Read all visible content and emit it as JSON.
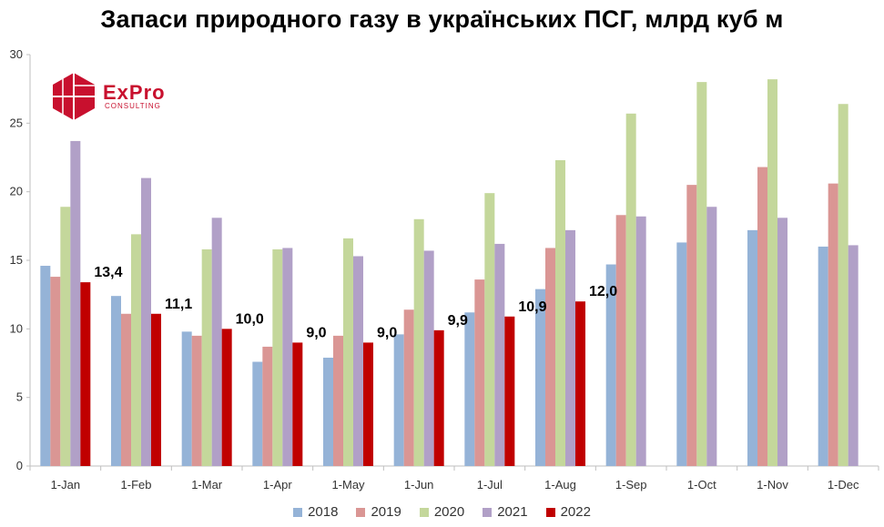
{
  "chart_data": {
    "type": "bar",
    "title": "Запаси природного газу в українських ПСГ, млрд куб м",
    "xlabel": "",
    "ylabel": "",
    "ylim": [
      0,
      30
    ],
    "yticks": [
      0,
      5,
      10,
      15,
      20,
      25,
      30
    ],
    "grid": false,
    "legend_position": "bottom",
    "categories": [
      "1-Jan",
      "1-Feb",
      "1-Mar",
      "1-Apr",
      "1-May",
      "1-Jun",
      "1-Jul",
      "1-Aug",
      "1-Sep",
      "1-Oct",
      "1-Nov",
      "1-Dec"
    ],
    "series": [
      {
        "name": "2018",
        "color": "#95B3D7",
        "values": [
          14.6,
          12.4,
          9.8,
          7.6,
          7.9,
          9.6,
          11.2,
          12.9,
          14.7,
          16.3,
          17.2,
          16.0
        ]
      },
      {
        "name": "2019",
        "color": "#DA9694",
        "values": [
          13.8,
          11.1,
          9.5,
          8.7,
          9.5,
          11.4,
          13.6,
          15.9,
          18.3,
          20.5,
          21.8,
          20.6
        ]
      },
      {
        "name": "2020",
        "color": "#C4D79B",
        "values": [
          18.9,
          16.9,
          15.8,
          15.8,
          16.6,
          18.0,
          19.9,
          22.3,
          25.7,
          28.0,
          28.2,
          26.4
        ]
      },
      {
        "name": "2021",
        "color": "#B1A0C7",
        "values": [
          23.7,
          21.0,
          18.1,
          15.9,
          15.3,
          15.7,
          16.2,
          17.2,
          18.2,
          18.9,
          18.1,
          16.1
        ]
      },
      {
        "name": "2022",
        "color": "#C00000",
        "values": [
          13.4,
          11.1,
          10.0,
          9.0,
          9.0,
          9.9,
          10.9,
          12.0,
          null,
          null,
          null,
          null
        ],
        "labels": [
          "13,4",
          "11,1",
          "10,0",
          "9,0",
          "9,0",
          "9,9",
          "10,9",
          "12,0",
          "",
          "",
          "",
          ""
        ]
      }
    ]
  },
  "logo": {
    "brand": "ExPro",
    "sub": "CONSULTING"
  }
}
